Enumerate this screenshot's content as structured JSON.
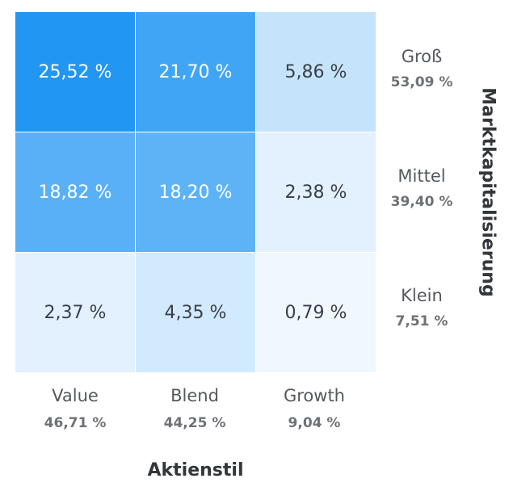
{
  "chart_data": {
    "type": "heatmap",
    "columns": [
      "Value",
      "Blend",
      "Growth"
    ],
    "rows": [
      "Groß",
      "Mittel",
      "Klein"
    ],
    "values": [
      [
        25.52,
        21.7,
        5.86
      ],
      [
        18.82,
        18.2,
        2.38
      ],
      [
        2.37,
        4.35,
        0.79
      ]
    ],
    "value_labels": [
      [
        "25,52 %",
        "21,70 %",
        "5,86 %"
      ],
      [
        "18,82 %",
        "18,20 %",
        "2,38 %"
      ],
      [
        "2,37 %",
        "4,35 %",
        "0,79 %"
      ]
    ],
    "row_totals": [
      "53,09 %",
      "39,40 %",
      "7,51 %"
    ],
    "column_totals": [
      "46,71 %",
      "44,25 %",
      "9,04 %"
    ],
    "xlabel": "Aktienstil",
    "ylabel": "Marktkapitalisierung",
    "colors": {
      "high": "#2196f3",
      "low": "#ffffff"
    }
  }
}
